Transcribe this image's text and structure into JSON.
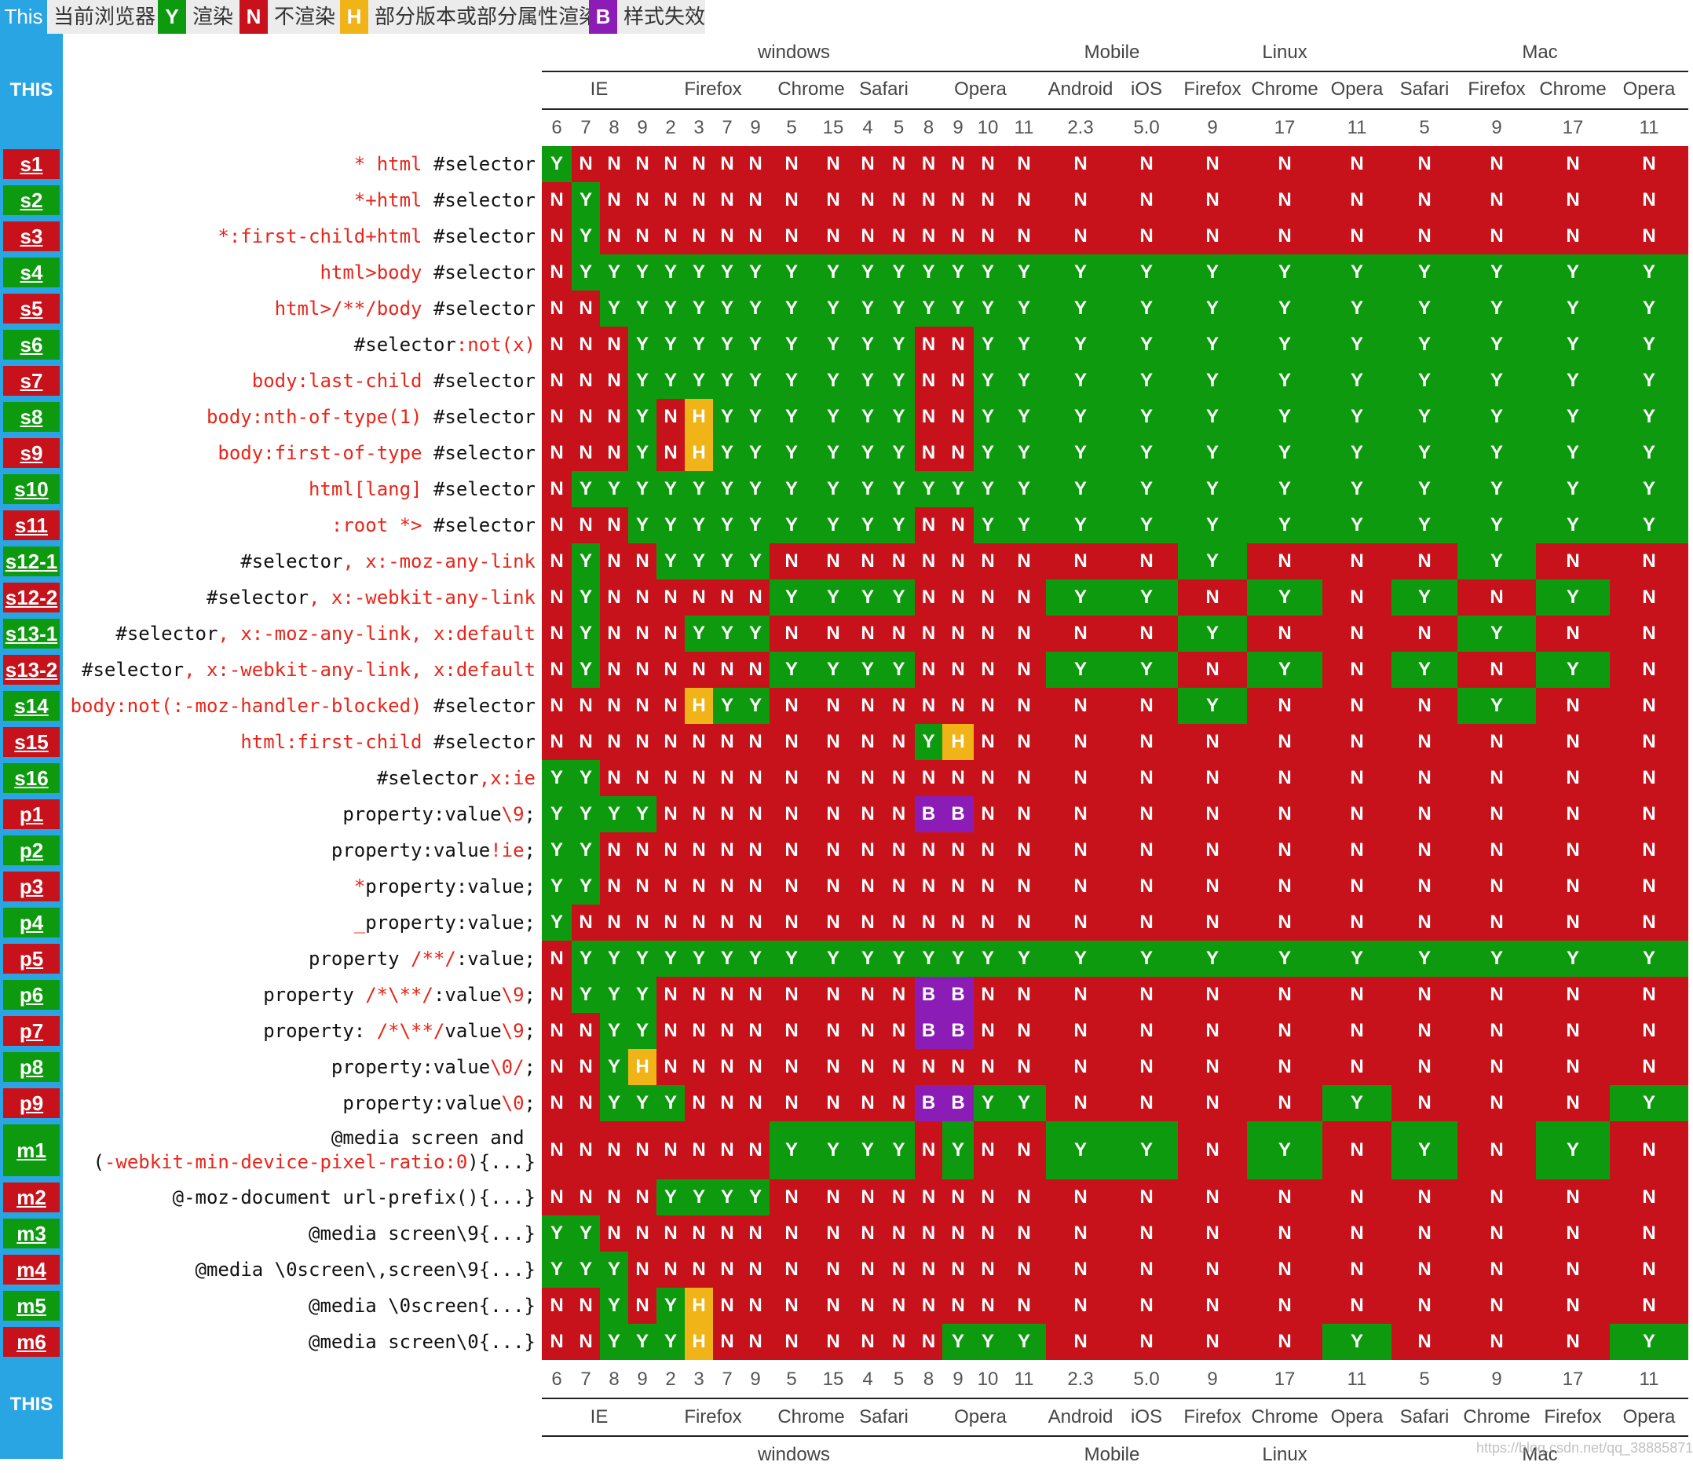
{
  "legend": {
    "this": "This",
    "current": "当前浏览器",
    "y": "Y",
    "y_label": "渲染",
    "n": "N",
    "n_label": "不渲染",
    "h": "H",
    "h_label": "部分版本或部分属性渲染",
    "b": "B",
    "b_label": "样式失效"
  },
  "side": {
    "this_top": "THIS",
    "this_bottom": "THIS"
  },
  "platforms": [
    {
      "name": "windows",
      "cols": 16
    },
    {
      "name": "Mobile",
      "cols": 2
    },
    {
      "name": "Linux",
      "cols": 3
    },
    {
      "name": "Mac",
      "cols": 4
    }
  ],
  "browsers_top": [
    {
      "name": "IE",
      "cols": 4
    },
    {
      "name": "Firefox",
      "cols": 4
    },
    {
      "name": "Chrome",
      "cols": 2
    },
    {
      "name": "Safari",
      "cols": 2
    },
    {
      "name": "Opera",
      "cols": 4
    },
    {
      "name": "Android",
      "cols": 1
    },
    {
      "name": "iOS",
      "cols": 1
    },
    {
      "name": "Firefox",
      "cols": 1
    },
    {
      "name": "Chrome",
      "cols": 1
    },
    {
      "name": "Opera",
      "cols": 1
    },
    {
      "name": "Safari",
      "cols": 1
    },
    {
      "name": "Firefox",
      "cols": 1
    },
    {
      "name": "Chrome",
      "cols": 1
    },
    {
      "name": "Opera",
      "cols": 1
    }
  ],
  "browsers_bottom": [
    {
      "name": "IE",
      "cols": 4
    },
    {
      "name": "Firefox",
      "cols": 4
    },
    {
      "name": "Chrome",
      "cols": 2
    },
    {
      "name": "Safari",
      "cols": 2
    },
    {
      "name": "Opera",
      "cols": 4
    },
    {
      "name": "Android",
      "cols": 1
    },
    {
      "name": "iOS",
      "cols": 1
    },
    {
      "name": "Firefox",
      "cols": 1
    },
    {
      "name": "Chrome",
      "cols": 1
    },
    {
      "name": "Opera",
      "cols": 1
    },
    {
      "name": "Safari",
      "cols": 1
    },
    {
      "name": "Chrome",
      "cols": 1
    },
    {
      "name": "Firefox",
      "cols": 1
    },
    {
      "name": "Opera",
      "cols": 1
    }
  ],
  "versions": [
    "6",
    "7",
    "8",
    "9",
    "2",
    "3",
    "7",
    "9",
    "5",
    "15",
    "4",
    "5",
    "8",
    "9",
    "10",
    "11",
    "2.3",
    "5.0",
    "9",
    "17",
    "11",
    "5",
    "9",
    "17",
    "11"
  ],
  "rows": [
    {
      "id": "s1",
      "code": [
        [
          [
            "* html",
            "r"
          ],
          [
            " #selector",
            ""
          ]
        ]
      ],
      "cells": "YNNNNNNNNNNNNNNNNNNNNNNNN"
    },
    {
      "id": "s2",
      "code": [
        [
          [
            "*+html",
            "r"
          ],
          [
            " #selector",
            ""
          ]
        ]
      ],
      "cells": "NYNNNNNNNNNNNNNNNNNNNNNNN"
    },
    {
      "id": "s3",
      "code": [
        [
          [
            "*:first-child+html",
            "r"
          ],
          [
            " #selector",
            ""
          ]
        ]
      ],
      "cells": "NYNNNNNNNNNNNNNNNNNNNNNNN"
    },
    {
      "id": "s4",
      "code": [
        [
          [
            "html>body",
            "r"
          ],
          [
            " #selector",
            ""
          ]
        ]
      ],
      "cells": "NYYYYYYYYYYYYYYYYYYYYYYYY"
    },
    {
      "id": "s5",
      "code": [
        [
          [
            "html>/**/body",
            "r"
          ],
          [
            " #selector",
            ""
          ]
        ]
      ],
      "cells": "NNYYYYYYYYYYYYYYYYYYYYYYY"
    },
    {
      "id": "s6",
      "code": [
        [
          [
            "#selector",
            ""
          ],
          [
            ":not(x)",
            "r"
          ]
        ]
      ],
      "cells": "NNNYYYYYYYYYNNYYYYYYYYYYY"
    },
    {
      "id": "s7",
      "code": [
        [
          [
            "body:last-child",
            "r"
          ],
          [
            " #selector",
            ""
          ]
        ]
      ],
      "cells": "NNNYYYYYYYYYNNYYYYYYYYYYY"
    },
    {
      "id": "s8",
      "code": [
        [
          [
            "body:nth-of-type(1)",
            "r"
          ],
          [
            " #selector",
            ""
          ]
        ]
      ],
      "cells": "NNNYNHYYYYYYNNYYYYYYYYYYY"
    },
    {
      "id": "s9",
      "code": [
        [
          [
            "body:first-of-type",
            "r"
          ],
          [
            " #selector",
            ""
          ]
        ]
      ],
      "cells": "NNNYNHYYYYYYNNYYYYYYYYYYY"
    },
    {
      "id": "s10",
      "code": [
        [
          [
            "html[lang]",
            "r"
          ],
          [
            " #selector",
            ""
          ]
        ]
      ],
      "cells": "NYYYYYYYYYYYYYYYYYYYYYYYY"
    },
    {
      "id": "s11",
      "code": [
        [
          [
            ":root *>",
            "r"
          ],
          [
            " #selector",
            ""
          ]
        ]
      ],
      "cells": "NNNYYYYYYYYYNNYYYYYYYYYYY"
    },
    {
      "id": "s12-1",
      "code": [
        [
          [
            "#selector",
            ""
          ],
          [
            ", x:-moz-any-link",
            "r"
          ]
        ]
      ],
      "cells": "NYNNYYYYNNNNNNNNNNYNNNYNN"
    },
    {
      "id": "s12-2",
      "code": [
        [
          [
            "#selector",
            ""
          ],
          [
            ", x:-webkit-any-link",
            "r"
          ]
        ]
      ],
      "cells": "NYNNNNNNYYYYNNNNYYNYNYNYN"
    },
    {
      "id": "s13-1",
      "code": [
        [
          [
            "#selector",
            ""
          ],
          [
            ", x:-moz-any-link, x:default",
            "r"
          ]
        ]
      ],
      "cells": "NYNNNYYYNNNNNNNNNNYNNNYNN"
    },
    {
      "id": "s13-2",
      "code": [
        [
          [
            "#selector",
            ""
          ],
          [
            ", x:-webkit-any-link, x:default",
            "r"
          ]
        ]
      ],
      "cells": "NYNNNNNNYYYYNNNNYYNYNYNYN"
    },
    {
      "id": "s14",
      "code": [
        [
          [
            "body:not(:-moz-handler-blocked)",
            "r"
          ],
          [
            " #selector",
            ""
          ]
        ]
      ],
      "cells": "NNNNNHYYNNNNNNNNNNYNNNYNN"
    },
    {
      "id": "s15",
      "code": [
        [
          [
            "html:first-child",
            "r"
          ],
          [
            " #selector",
            ""
          ]
        ]
      ],
      "cells": "NNNNNNNNNNNNYHNNNNNNNNNNN"
    },
    {
      "id": "s16",
      "code": [
        [
          [
            "#selector",
            ""
          ],
          [
            ",x:ie",
            "r"
          ]
        ]
      ],
      "cells": "YYNNNNNNNNNNNNNNNNNNNNNNN"
    },
    {
      "id": "p1",
      "code": [
        [
          [
            "property:value",
            ""
          ],
          [
            "\\9",
            "r"
          ],
          [
            ";",
            ""
          ]
        ]
      ],
      "cells": "YYYYNNNNNNNNBBNNNNNNNNNNN"
    },
    {
      "id": "p2",
      "code": [
        [
          [
            "property:value",
            ""
          ],
          [
            "!ie",
            "r"
          ],
          [
            ";",
            ""
          ]
        ]
      ],
      "cells": "YYNNNNNNNNNNNNNNNNNNNNNNN"
    },
    {
      "id": "p3",
      "code": [
        [
          [
            "*",
            "r"
          ],
          [
            "property:value;",
            ""
          ]
        ]
      ],
      "cells": "YYNNNNNNNNNNNNNNNNNNNNNNN"
    },
    {
      "id": "p4",
      "code": [
        [
          [
            "_",
            "r"
          ],
          [
            "property:value;",
            ""
          ]
        ]
      ],
      "cells": "YNNNNNNNNNNNNNNNNNNNNNNNN"
    },
    {
      "id": "p5",
      "code": [
        [
          [
            "property ",
            ""
          ],
          [
            "/**/",
            "r"
          ],
          [
            ":value;",
            ""
          ]
        ]
      ],
      "cells": "NYYYYYYYYYYYYYYYYYYYYYYYY"
    },
    {
      "id": "p6",
      "code": [
        [
          [
            "property ",
            ""
          ],
          [
            "/*\\**/",
            "r"
          ],
          [
            ":value",
            ""
          ],
          [
            "\\9",
            "r"
          ],
          [
            ";",
            ""
          ]
        ]
      ],
      "cells": "NYYYNNNNNNNNBBNNNNNNNNNNN"
    },
    {
      "id": "p7",
      "code": [
        [
          [
            "property: ",
            ""
          ],
          [
            "/*\\**/",
            "r"
          ],
          [
            "value",
            ""
          ],
          [
            "\\9",
            "r"
          ],
          [
            ";",
            ""
          ]
        ]
      ],
      "cells": "NNYYNNNNNNNNBBNNNNNNNNNNN"
    },
    {
      "id": "p8",
      "code": [
        [
          [
            "property:value",
            ""
          ],
          [
            "\\0/",
            "r"
          ],
          [
            ";",
            ""
          ]
        ]
      ],
      "cells": "NNYHNNNNNNNNNNNNNNNNNNNNN"
    },
    {
      "id": "p9",
      "code": [
        [
          [
            "property:value",
            ""
          ],
          [
            "\\0",
            "r"
          ],
          [
            ";",
            ""
          ]
        ]
      ],
      "cells": "NNYYYNNNNNNNBBYYNNNNYNNNY"
    },
    {
      "id": "m1",
      "tall": true,
      "code": [
        [
          [
            "@media screen and ",
            ""
          ]
        ],
        [
          [
            "(",
            ""
          ],
          [
            "-webkit-min-device-pixel-ratio:0",
            "r"
          ],
          [
            "){...}",
            ""
          ]
        ]
      ],
      "cells": "NNNNNNNNYYYYNYNNYYNYNYNYN"
    },
    {
      "id": "m2",
      "code": [
        [
          [
            "@-moz-document url-prefix(){...}",
            ""
          ]
        ]
      ],
      "cells": "NNNNYYYYNNNNNNNNNNNNNNNNN"
    },
    {
      "id": "m3",
      "code": [
        [
          [
            "@media screen\\9{...}",
            ""
          ]
        ]
      ],
      "cells": "YYNNNNNNNNNNNNNNNNNNNNNNN"
    },
    {
      "id": "m4",
      "code": [
        [
          [
            "@media \\0screen\\,screen\\9{...}",
            ""
          ]
        ]
      ],
      "cells": "YYYNNNNNNNNNNNNNNNNNNNNNN"
    },
    {
      "id": "m5",
      "code": [
        [
          [
            "@media \\0screen{...}",
            ""
          ]
        ]
      ],
      "cells": "NNYNYHNNNNNNNNNNNNNNNNNNN"
    },
    {
      "id": "m6",
      "code": [
        [
          [
            "@media screen\\0{...}",
            ""
          ]
        ]
      ],
      "cells": "NNYYYHNNNNNNNYYYNNNNYNNNY"
    }
  ],
  "watermark": "https://blog.csdn.net/qq_38885871",
  "colors": {
    "Y": "#0e9a0e",
    "N": "#c8121b",
    "H": "#f0b418",
    "B": "#8c1cb6",
    "side": "#29a5e4"
  }
}
